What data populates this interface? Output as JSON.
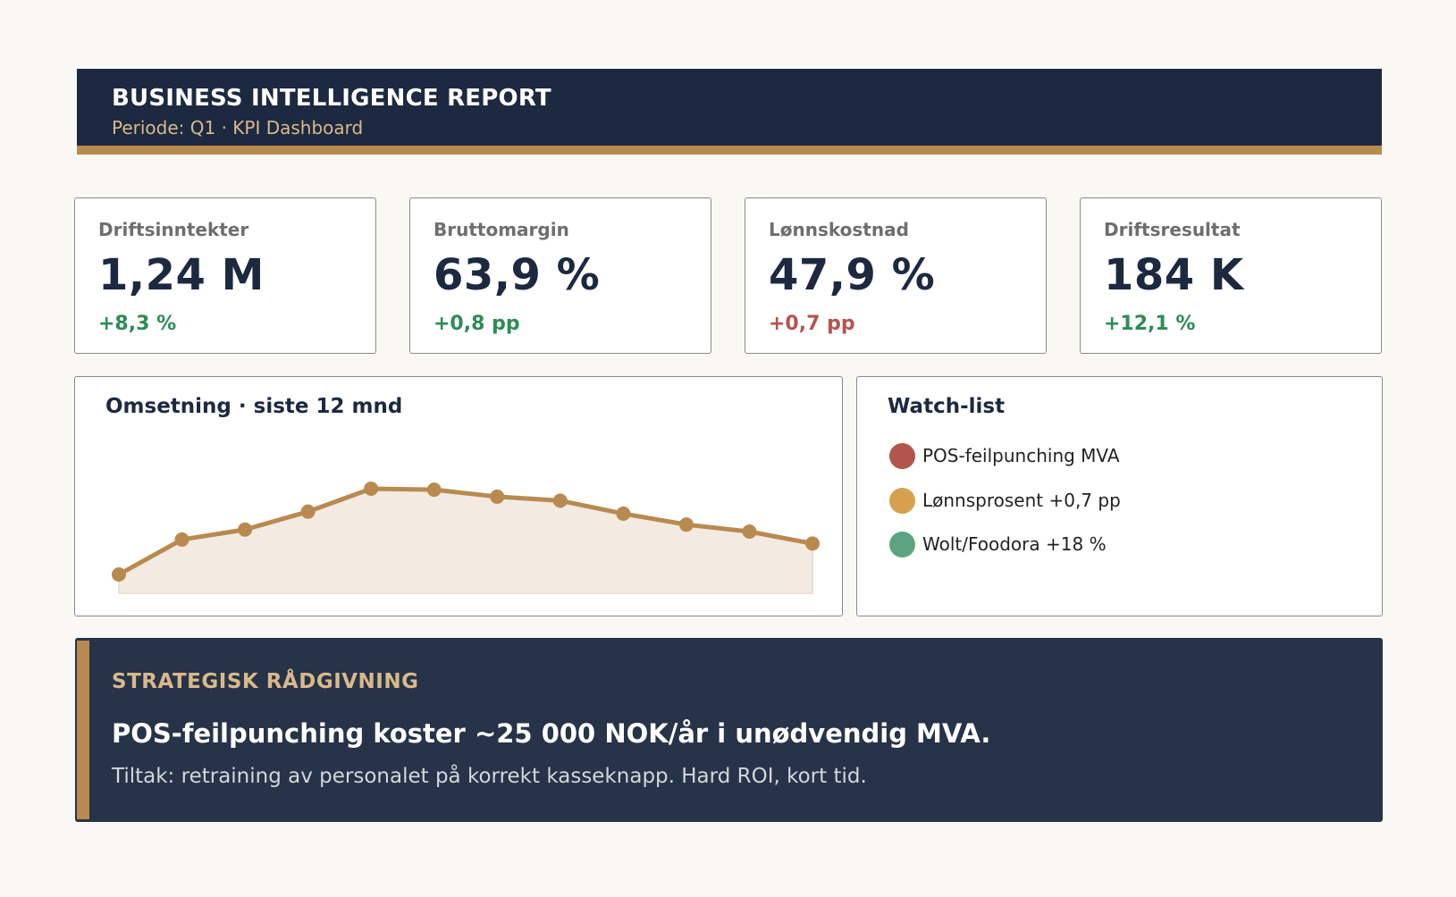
{
  "header": {
    "title": "BUSINESS INTELLIGENCE REPORT",
    "subtitle": "Periode: Q1 · KPI Dashboard"
  },
  "kpis": [
    {
      "label": "Driftsinntekter",
      "value": "1,24 M",
      "delta": "+8,3 %",
      "trend": "positive"
    },
    {
      "label": "Bruttomargin",
      "value": "63,9 %",
      "delta": "+0,8 pp",
      "trend": "positive"
    },
    {
      "label": "Lønnskostnad",
      "value": "47,9 %",
      "delta": "+0,7 pp",
      "trend": "negative"
    },
    {
      "label": "Driftsresultat",
      "value": "184 K",
      "delta": "+12,1 %",
      "trend": "positive"
    }
  ],
  "chart_panel": {
    "title": "Omsetning · siste 12 mnd"
  },
  "chart_data": {
    "type": "area",
    "title": "Omsetning · siste 12 mnd",
    "x": [
      1,
      2,
      3,
      4,
      5,
      6,
      7,
      8,
      9,
      10,
      11,
      12
    ],
    "values": [
      0,
      35,
      45,
      63,
      86,
      85,
      78,
      74,
      61,
      50,
      43,
      31
    ],
    "ylim": [
      -20,
      100
    ],
    "grid": false,
    "color": "#b88a50",
    "fill": "#f3ebe1"
  },
  "watchlist": {
    "title": "Watch-list",
    "items": [
      {
        "text": "POS-feilpunching MVA",
        "color": "#b5534f"
      },
      {
        "text": "Lønnsprosent +0,7 pp",
        "color": "#d6a04e"
      },
      {
        "text": "Wolt/Foodora +18 %",
        "color": "#5ba47f"
      }
    ]
  },
  "advice": {
    "kicker": "STRATEGISK RÅDGIVNING",
    "headline": "POS-feilpunching koster ~25 000 NOK/år i unødvendig MVA.",
    "body": "Tiltak: retraining av personalet på korrekt kasseknapp. Hard ROI, kort tid."
  },
  "colors": {
    "navy": "#1c2940",
    "gold": "#b88a50",
    "positive": "#2e8b57",
    "negative": "#b5534f"
  }
}
